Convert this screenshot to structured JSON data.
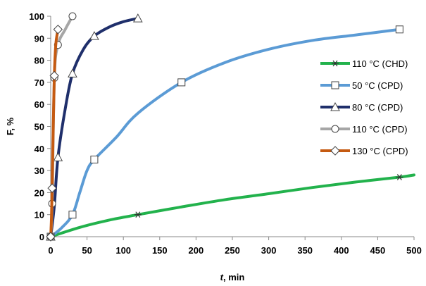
{
  "chart_data": {
    "type": "line",
    "title": "",
    "xlabel_italic": "t",
    "xlabel_rest": ", min",
    "ylabel": "F, %",
    "xlim": [
      0,
      500
    ],
    "ylim": [
      0,
      100
    ],
    "xticks": [
      0,
      50,
      100,
      150,
      200,
      250,
      300,
      350,
      400,
      450,
      500
    ],
    "yticks": [
      0,
      10,
      20,
      30,
      40,
      50,
      60,
      70,
      80,
      90,
      100
    ],
    "grid": false,
    "legend_position": "right",
    "series": [
      {
        "name": "110 °C (CHD)",
        "color": "#22b24c",
        "marker": "asterisk",
        "x": [
          0,
          120,
          480
        ],
        "y": [
          0,
          10,
          27
        ],
        "curve_x": [
          0,
          40,
          80,
          120,
          180,
          240,
          300,
          360,
          420,
          480,
          500
        ],
        "curve_y": [
          0,
          4.2,
          7.5,
          10,
          13.5,
          16.8,
          19.5,
          22.3,
          24.8,
          27,
          28
        ]
      },
      {
        "name": "50 °C (CPD)",
        "color": "#5b9bd5",
        "marker": "square",
        "x": [
          0,
          30,
          60,
          180,
          480
        ],
        "y": [
          0,
          10,
          35,
          70,
          94
        ],
        "curve_x": [
          0,
          15,
          30,
          40,
          50,
          60,
          90,
          120,
          180,
          240,
          300,
          360,
          420,
          480
        ],
        "curve_y": [
          0,
          4,
          10,
          20,
          30,
          35,
          45,
          56,
          70,
          79,
          85,
          89,
          91.5,
          94
        ]
      },
      {
        "name": "80 °C (CPD)",
        "color": "#1f2f6b",
        "marker": "triangle",
        "x": [
          0,
          10,
          30,
          60,
          120
        ],
        "y": [
          0,
          36,
          74,
          91,
          99
        ],
        "curve_x": [
          0,
          5,
          10,
          20,
          30,
          45,
          60,
          80,
          100,
          120
        ],
        "curve_y": [
          0,
          14,
          36,
          58,
          74,
          85,
          91,
          95,
          97.5,
          99
        ]
      },
      {
        "name": "110 °C (CPD)",
        "color": "#a6a6a6",
        "marker": "circle",
        "x": [
          0,
          2,
          5,
          10,
          30
        ],
        "y": [
          0,
          15,
          72,
          87,
          100
        ],
        "curve_x": [
          0,
          2,
          5,
          10,
          20,
          30
        ],
        "curve_y": [
          0,
          15,
          72,
          87,
          94,
          100
        ]
      },
      {
        "name": "130 °C (CPD)",
        "color": "#c55a11",
        "marker": "diamond",
        "x": [
          0,
          2,
          5,
          10
        ],
        "y": [
          0,
          22,
          73,
          94
        ],
        "curve_x": [
          0,
          1,
          2,
          3.5,
          5,
          7,
          10
        ],
        "curve_y": [
          0,
          8,
          22,
          50,
          73,
          87,
          94
        ]
      }
    ]
  }
}
